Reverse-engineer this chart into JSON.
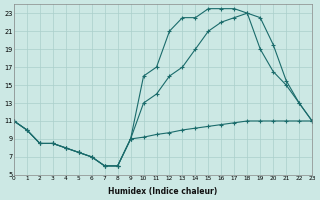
{
  "xlabel": "Humidex (Indice chaleur)",
  "background_color": "#cce8e4",
  "grid_color": "#aacfcb",
  "line_color": "#1a6b6b",
  "xlim": [
    0,
    23
  ],
  "ylim": [
    5,
    24
  ],
  "xticks": [
    0,
    1,
    2,
    3,
    4,
    5,
    6,
    7,
    8,
    9,
    10,
    11,
    12,
    13,
    14,
    15,
    16,
    17,
    18,
    19,
    20,
    21,
    22,
    23
  ],
  "yticks": [
    5,
    7,
    9,
    11,
    13,
    15,
    17,
    19,
    21,
    23
  ],
  "line1_x": [
    0,
    1,
    2,
    3,
    4,
    5,
    6,
    7,
    8,
    9,
    10,
    11,
    12,
    13,
    14,
    15,
    16,
    17,
    18,
    19,
    20,
    21,
    22,
    23
  ],
  "line1_y": [
    11,
    10,
    8.5,
    8.5,
    8,
    7.5,
    7,
    6,
    6,
    9,
    9.2,
    9.5,
    9.7,
    10,
    10.2,
    10.4,
    10.6,
    10.8,
    11,
    11,
    11,
    11,
    11,
    11
  ],
  "line2_x": [
    0,
    1,
    2,
    3,
    4,
    5,
    6,
    7,
    8,
    9,
    10,
    11,
    12,
    13,
    14,
    15,
    16,
    17,
    18,
    19,
    20,
    21,
    22,
    23
  ],
  "line2_y": [
    11,
    10,
    8.5,
    8.5,
    8,
    7.5,
    7,
    6,
    6,
    9,
    16,
    17,
    21,
    22.5,
    22.5,
    23.5,
    23.5,
    23.5,
    23,
    22.5,
    19.5,
    15.5,
    13,
    11
  ],
  "line3_x": [
    0,
    1,
    2,
    3,
    4,
    5,
    6,
    7,
    8,
    9,
    10,
    11,
    12,
    13,
    14,
    15,
    16,
    17,
    18,
    19,
    20,
    21,
    22,
    23
  ],
  "line3_y": [
    11,
    10,
    8.5,
    8.5,
    8,
    7.5,
    7,
    6,
    6,
    9,
    13,
    14,
    16,
    17,
    19,
    21,
    22,
    22.5,
    23,
    19,
    16.5,
    15,
    13,
    11
  ]
}
